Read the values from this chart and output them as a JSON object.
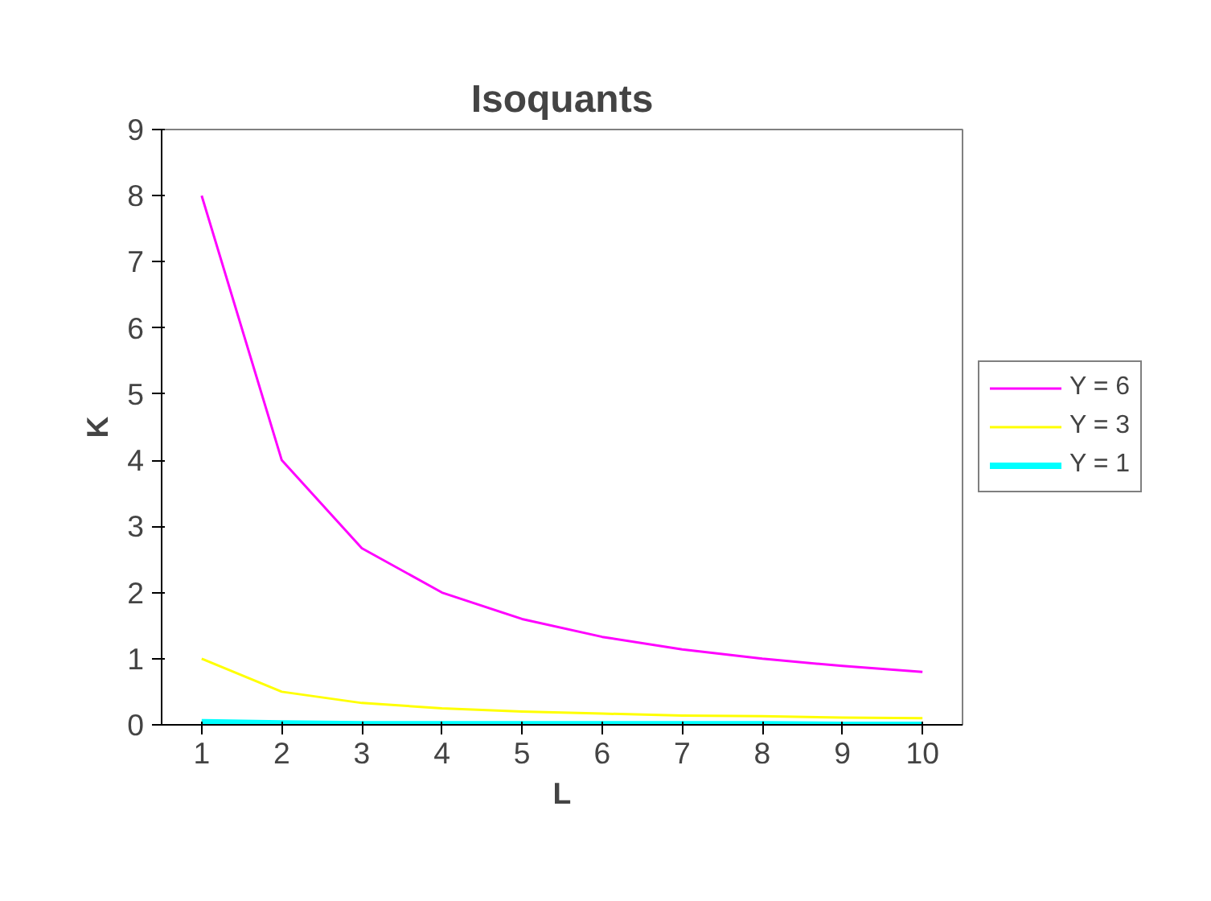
{
  "chart_data": {
    "type": "line",
    "title": "Isoquants",
    "xlabel": "L",
    "ylabel": "K",
    "categories": [
      "1",
      "2",
      "3",
      "4",
      "5",
      "6",
      "7",
      "8",
      "9",
      "10"
    ],
    "series": [
      {
        "name": "Y = 6",
        "color": "#ff00ff",
        "values": [
          8,
          4,
          2.67,
          2,
          1.6,
          1.33,
          1.14,
          1,
          0.89,
          0.8
        ]
      },
      {
        "name": "Y = 3",
        "color": "#ffff00",
        "values": [
          1,
          0.5,
          0.33,
          0.25,
          0.2,
          0.17,
          0.14,
          0.13,
          0.11,
          0.1
        ]
      },
      {
        "name": "Y = 1",
        "color": "#00ffff",
        "values": [
          0.04,
          0.02,
          0.01,
          0.01,
          0.01,
          0.01,
          0.01,
          0.01,
          0,
          0
        ]
      }
    ],
    "ylim": [
      0,
      9
    ],
    "yticks": [
      0,
      1,
      2,
      3,
      4,
      5,
      6,
      7,
      8,
      9
    ],
    "grid": false,
    "legend": "right",
    "marker": "none",
    "line_style": "solid"
  }
}
